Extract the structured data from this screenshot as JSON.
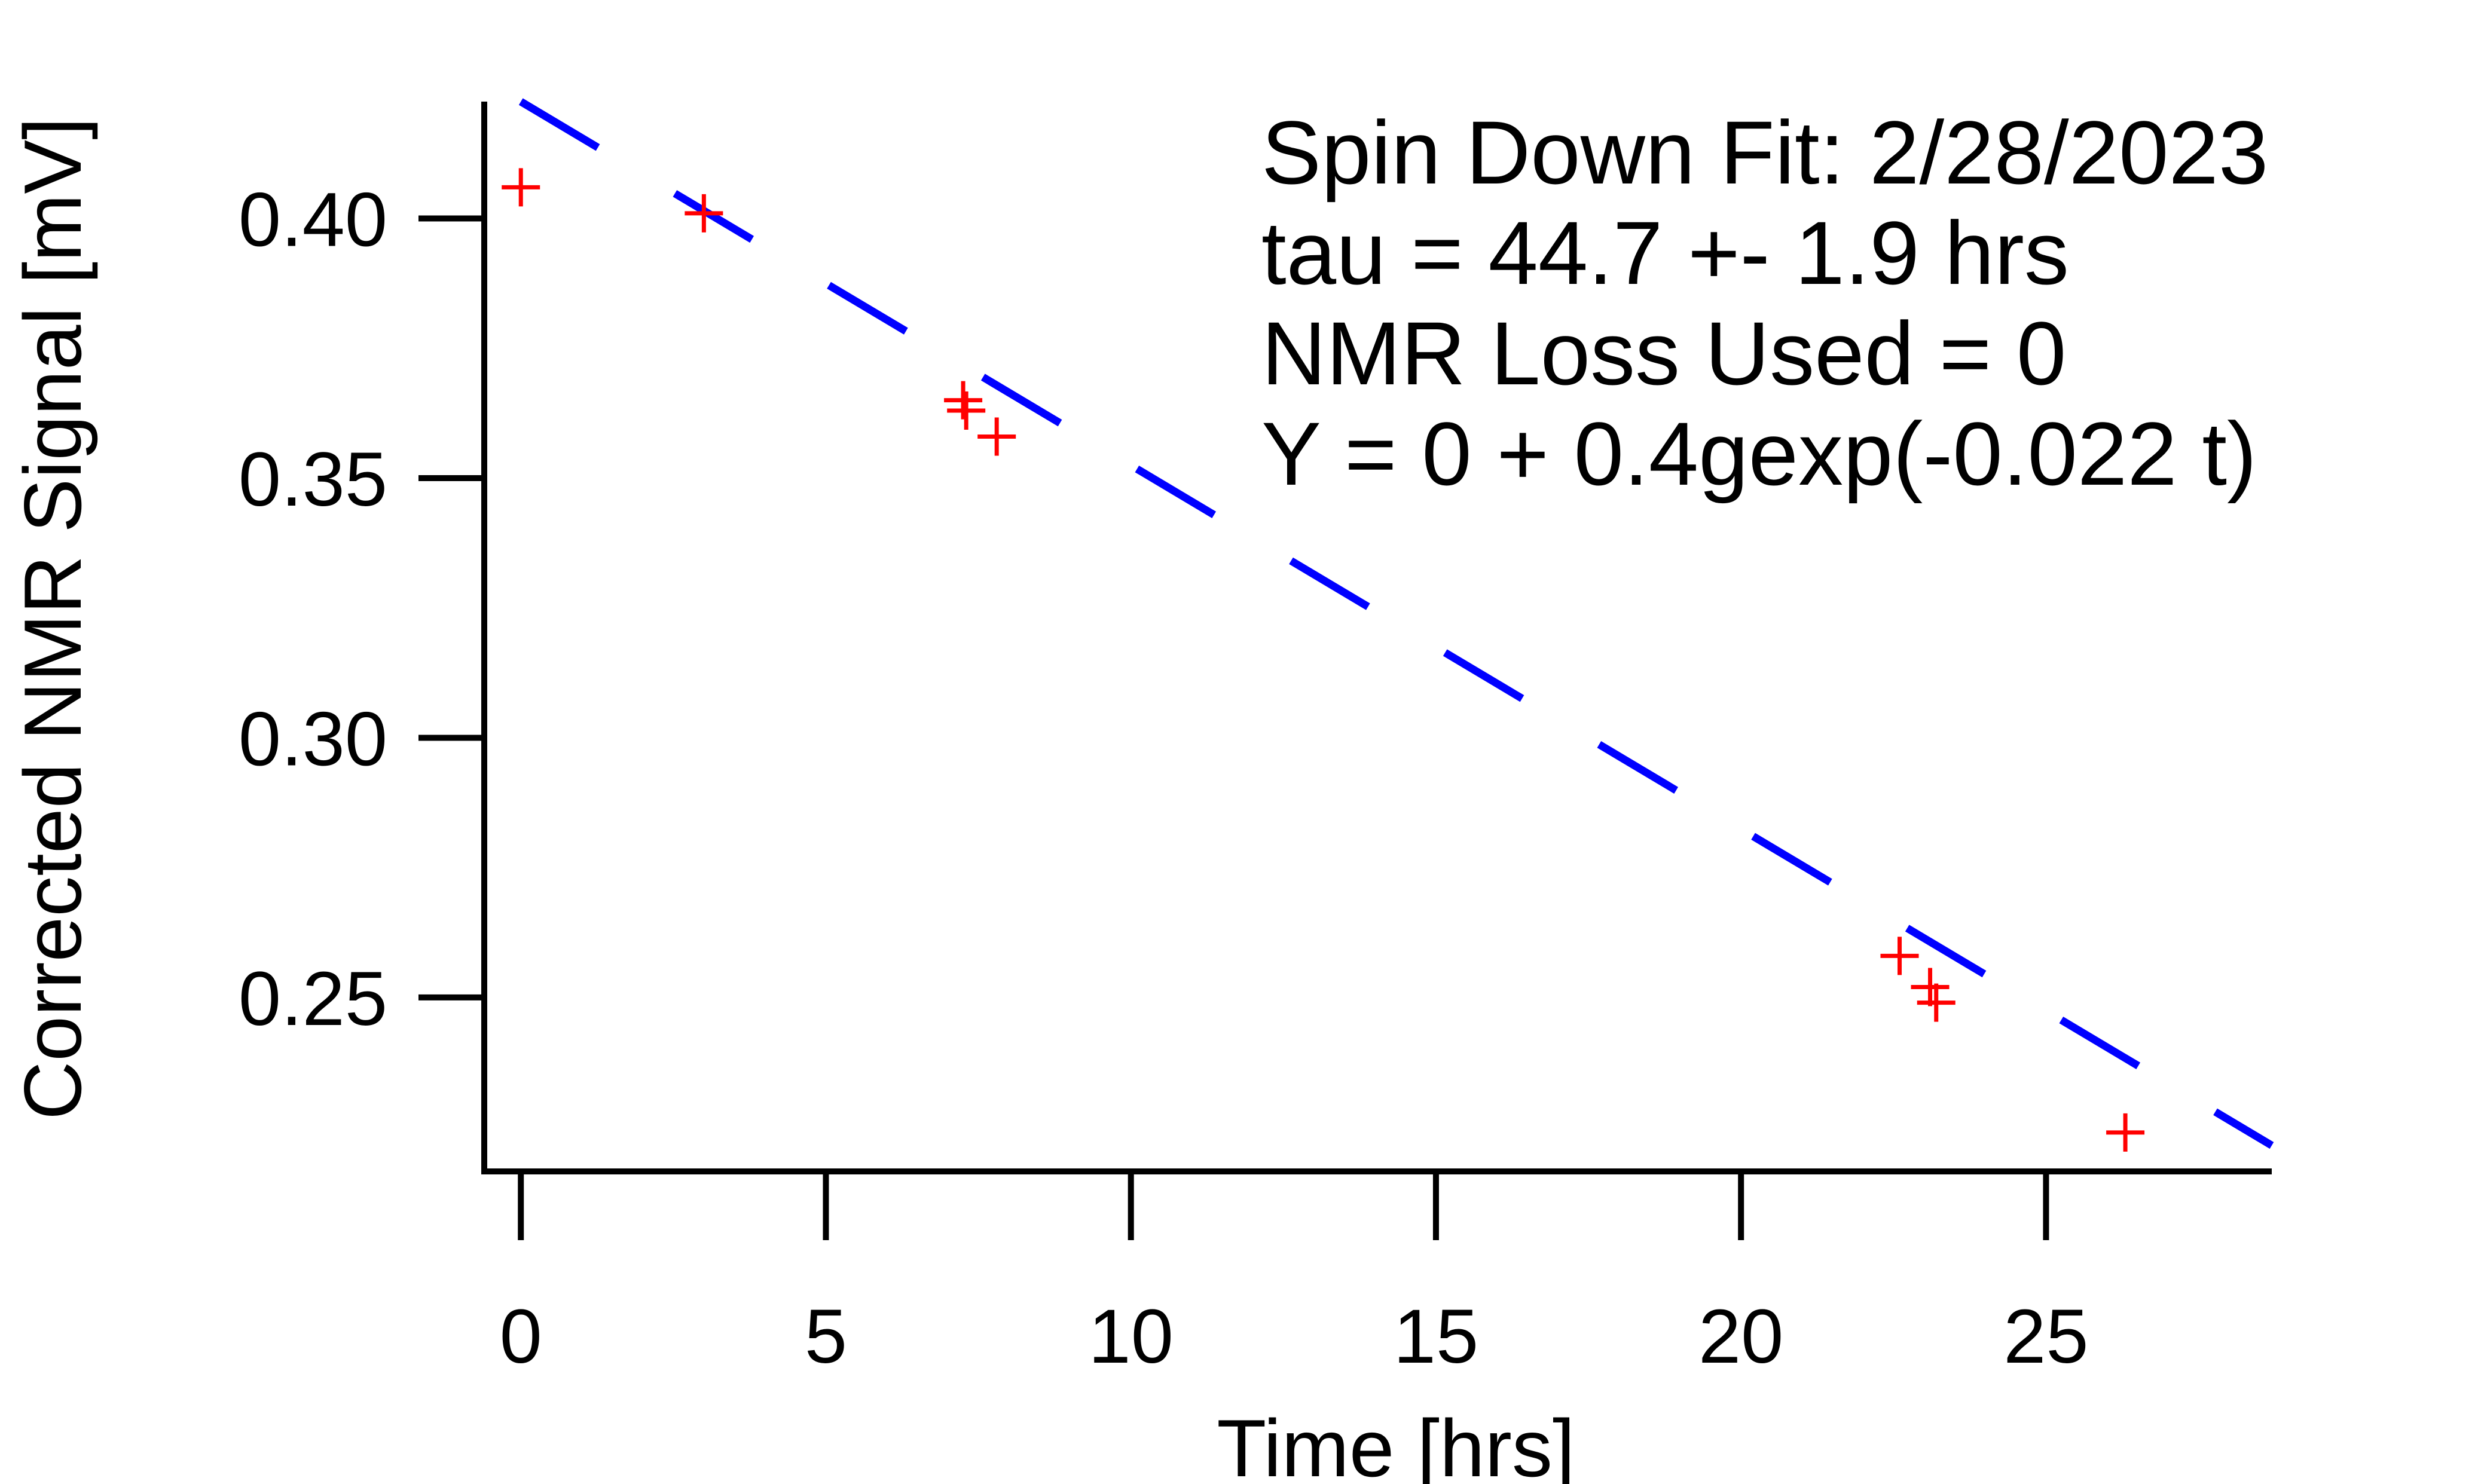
{
  "chart_data": {
    "type": "scatter",
    "xlabel": "Time [hrs]",
    "ylabel": "Corrected NMR Signal [mV]",
    "xlim": [
      -0.6,
      28.7
    ],
    "ylim": [
      0.2165,
      0.4225
    ],
    "x_ticks": [
      "0",
      "5",
      "10",
      "15",
      "20",
      "25"
    ],
    "y_ticks": [
      "0.40",
      "0.35",
      "0.30",
      "0.25"
    ],
    "x_tick_values": [
      0,
      5,
      10,
      15,
      20,
      25
    ],
    "y_tick_values": [
      0.4,
      0.35,
      0.3,
      0.25
    ],
    "grid": false,
    "annotations": [
      "Spin Down Fit: 2/28/2023",
      "tau = 44.7  +- 1.9 hrs",
      "NMR Loss Used = 0",
      "Y = 0 + 0.4gexp(-0.022 t)"
    ],
    "series": [
      {
        "kind": "points",
        "marker": "plus",
        "color": "#ff0000",
        "x": [
          0.0,
          3.0,
          7.25,
          7.3,
          7.8,
          22.6,
          23.1,
          23.2,
          26.3
        ],
        "y": [
          0.406,
          0.401,
          0.365,
          0.363,
          0.358,
          0.258,
          0.252,
          0.249,
          0.224
        ]
      },
      {
        "kind": "fit",
        "style": "dashed",
        "color": "#0000ff",
        "x": [
          0.0,
          28.7
        ],
        "y": [
          0.4225,
          0.2215
        ]
      }
    ]
  }
}
